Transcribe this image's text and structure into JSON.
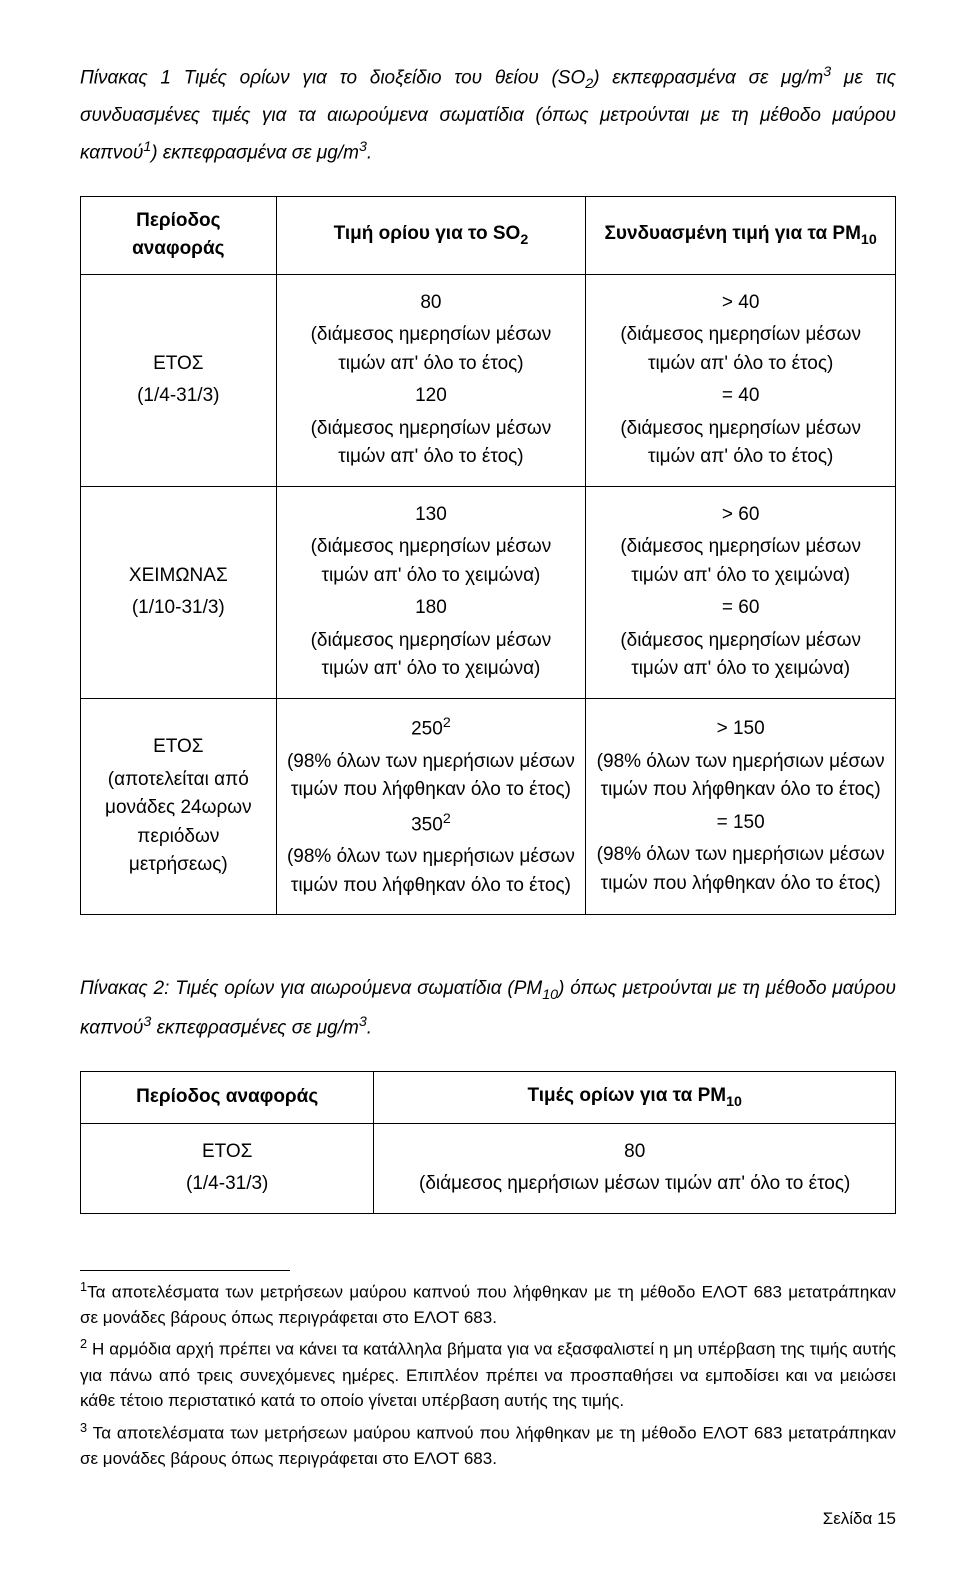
{
  "intro": {
    "prefix": "Πίνακας 1 Τιμές ορίων για το διοξείδιο του θείου (SO",
    "sub1": "2",
    "mid1": ") εκπεφρασμένα σε μg/m",
    "sup1": "3",
    "mid2": " με τις συνδυασμένες τιμές για τα αιωρούμενα σωματίδια (όπως μετρούνται με τη μέθοδο μαύρου καπνού",
    "sup2": "1",
    "mid3": ") εκπεφρασμένα σε μg/m",
    "sup3": "3",
    "suffix": "."
  },
  "headers": {
    "c1a": "Περίοδος",
    "c1b": "αναφοράς",
    "c2a": "Τιμή ορίου για το SO",
    "c2b": "2",
    "c3a": "Συνδυασμένη τιμή για τα PM",
    "c3b": "10"
  },
  "rows": [
    {
      "period_line1": "ΕΤΟΣ",
      "period_line2": "(1/4-31/3)",
      "col2": [
        {
          "main": "80",
          "note": "(διάμεσος ημερησίων μέσων τιμών απ' όλο το έτος)"
        },
        {
          "main": "120",
          "note": "(διάμεσος ημερησίων μέσων τιμών απ' όλο το έτος)"
        }
      ],
      "col3": [
        {
          "main": "> 40",
          "note": "(διάμεσος ημερησίων μέσων τιμών απ' όλο το έτος)"
        },
        {
          "main": "= 40",
          "note": "(διάμεσος ημερησίων μέσων τιμών απ' όλο το έτος)"
        }
      ]
    },
    {
      "period_line1": "ΧΕΙΜΩΝΑΣ",
      "period_line2": "(1/10-31/3)",
      "col2": [
        {
          "main": "130",
          "note": "(διάμεσος ημερησίων μέσων τιμών απ' όλο το χειμώνα)"
        },
        {
          "main": "180",
          "note": "(διάμεσος ημερησίων μέσων τιμών απ' όλο το χειμώνα)"
        }
      ],
      "col3": [
        {
          "main": "> 60",
          "note": "(διάμεσος ημερησίων μέσων τιμών απ' όλο το χειμώνα)"
        },
        {
          "main": "= 60",
          "note": "(διάμεσος ημερησίων μέσων τιμών απ' όλο το χειμώνα)"
        }
      ]
    },
    {
      "period_line1": "ΕΤΟΣ",
      "period_line2": "(αποτελείται από μονάδες 24ωρων περιόδων μετρήσεως)",
      "col2": [
        {
          "main": "250",
          "sup": "2",
          "note": "(98% όλων των ημερήσιων μέσων τιμών που λήφθηκαν όλο το έτος)"
        },
        {
          "main": "350",
          "sup": "2",
          "note": "(98% όλων των ημερήσιων μέσων τιμών που λήφθηκαν όλο το έτος)"
        }
      ],
      "col3": [
        {
          "main": "> 150",
          "note": "(98% όλων των ημερήσιων μέσων τιμών που λήφθηκαν όλο το έτος)"
        },
        {
          "main": "= 150",
          "note": "(98% όλων των ημερήσιων μέσων τιμών που λήφθηκαν όλο το έτος)"
        }
      ]
    }
  ],
  "table2_intro": {
    "prefix": "Πίνακας 2: Τιμές ορίων για αιωρούμενα σωματίδια (PM",
    "sub1": "10",
    "mid1": ") όπως μετρούνται με τη μέθοδο μαύρου καπνού",
    "sup1": "3",
    "mid2": " εκπεφρασμένες σε μg/m",
    "sup2": "3",
    "suffix": "."
  },
  "table2": {
    "h1": "Περίοδος αναφοράς",
    "h2a": "Τιμές ορίων για τα PM",
    "h2b": "10",
    "r1c1a": "ΕΤΟΣ",
    "r1c1b": "(1/4-31/3)",
    "r1c2a": "80",
    "r1c2b": "(διάμεσος ημερήσιων μέσων τιμών απ' όλο το έτος)"
  },
  "footnotes": {
    "f1_num": "1",
    "f1": "Τα αποτελέσματα των μετρήσεων μαύρου καπνού που λήφθηκαν με τη μέθοδο ΕΛΟΤ 683 μετατράπηκαν σε μονάδες βάρους όπως περιγράφεται στο ΕΛΟΤ 683.",
    "f2_num": "2",
    "f2": " Η αρμόδια αρχή πρέπει να κάνει τα κατάλληλα βήματα για να εξασφαλιστεί η μη υπέρβαση της τιμής αυτής για πάνω από τρεις συνεχόμενες ημέρες. Επιπλέον πρέπει να προσπαθήσει να εμποδίσει και να μειώσει κάθε τέτοιο περιστατικό κατά το οποίο γίνεται υπέρβαση αυτής της τιμής.",
    "f3_num": "3",
    "f3": " Τα αποτελέσματα των μετρήσεων μαύρου καπνού που λήφθηκαν με τη μέθοδο ΕΛΟΤ 683 μετατράπηκαν σε μονάδες βάρους όπως περιγράφεται στο ΕΛΟΤ 683."
  },
  "page_label": "Σελίδα",
  "page_number": "15"
}
